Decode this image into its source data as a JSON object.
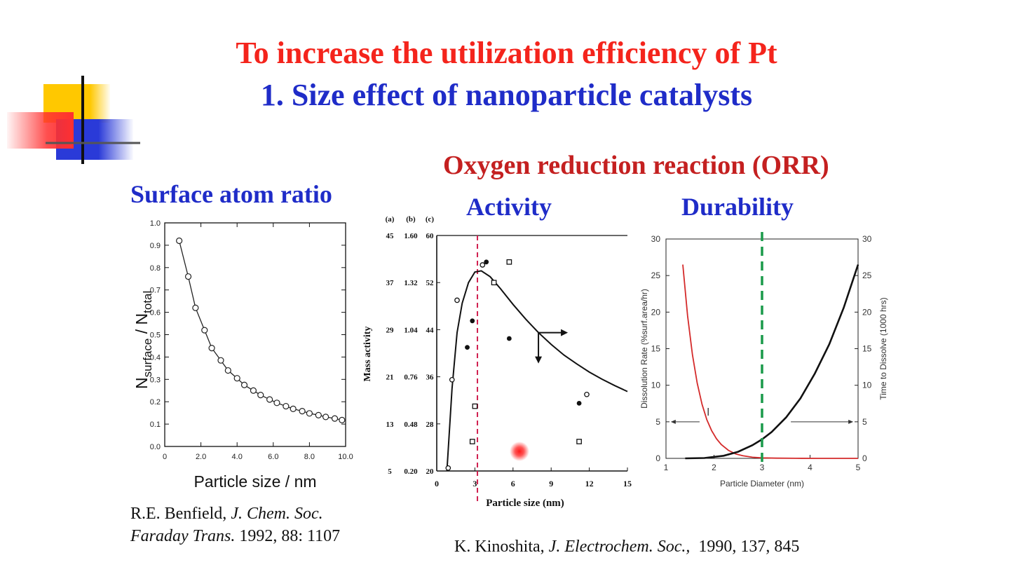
{
  "header": {
    "title_line1": "To increase the utilization efficiency of Pt",
    "title_line2": "1. Size effect of nanoparticle catalysts",
    "orr_title": "Oxygen reduction reaction (ORR)",
    "left_subtitle": "Surface atom ratio",
    "activity_subtitle": "Activity",
    "durability_subtitle": "Durability"
  },
  "colors": {
    "title_red": "#f4241c",
    "title_blue": "#1f2cc8",
    "orr_red": "#c42020",
    "dissolution_red": "#d42a2a",
    "durability_marker_green": "#1a9a4a",
    "activity_marker_red": "#d02050"
  },
  "citations": {
    "left_author": "R.E. Benfield, ",
    "left_journal": "J. Chem. Soc.",
    "left_journal2": "Faraday Trans.",
    "left_details": " 1992, 88: 1107",
    "middle_author": "K. Kinoshita, ",
    "middle_journal": "J. Electrochem. Soc.,",
    "middle_details": "  1990, 137, 845"
  },
  "chart_data": [
    {
      "type": "scatter",
      "name": "surface-atom-ratio",
      "xlabel": "Particle size / nm",
      "ylabel_main": "N",
      "ylabel_sub1": "surface",
      "ylabel_mid": " / N",
      "ylabel_sub2": "total",
      "xlim": [
        0,
        10
      ],
      "ylim": [
        0,
        1.0
      ],
      "x_ticks": [
        "0",
        "2.0",
        "4.0",
        "6.0",
        "8.0",
        "10.0"
      ],
      "y_ticks": [
        "0.0",
        "0.1",
        "0.2",
        "0.3",
        "0.4",
        "0.5",
        "0.6",
        "0.7",
        "0.8",
        "0.9",
        "1.0"
      ],
      "x": [
        0.8,
        1.3,
        1.7,
        2.2,
        2.6,
        3.1,
        3.5,
        4.0,
        4.4,
        4.9,
        5.3,
        5.8,
        6.2,
        6.7,
        7.1,
        7.6,
        8.0,
        8.5,
        8.9,
        9.4,
        9.8
      ],
      "y": [
        0.92,
        0.76,
        0.62,
        0.52,
        0.44,
        0.385,
        0.34,
        0.305,
        0.275,
        0.25,
        0.23,
        0.21,
        0.195,
        0.18,
        0.168,
        0.158,
        0.148,
        0.14,
        0.132,
        0.125,
        0.118
      ]
    },
    {
      "type": "scatter",
      "name": "mass-activity",
      "xlabel": "Particle size (nm)",
      "ylabel": "Mass activity",
      "col_headers": [
        "(a)",
        "(b)",
        "(c)"
      ],
      "col_a_ticks": [
        "45",
        "37",
        "29",
        "21",
        "13",
        "5"
      ],
      "col_b_ticks": [
        "1.60",
        "1.32",
        "1.04",
        "0.76",
        "0.48",
        "0.20"
      ],
      "col_c_ticks": [
        "60",
        "52",
        "44",
        "36",
        "28",
        "20"
      ],
      "x_ticks": [
        "0",
        "3",
        "6",
        "9",
        "12",
        "15"
      ],
      "xlim": [
        0,
        15
      ],
      "ylim": [
        20,
        60
      ],
      "marker_x": 3.2,
      "curve_x": [
        0.8,
        1.2,
        1.6,
        2.0,
        2.5,
        3.0,
        3.5,
        4.2,
        5.0,
        6.0,
        7.0,
        8.0,
        9.0,
        10.0,
        11.0,
        12.0,
        13.0,
        14.0,
        15.0
      ],
      "curve_y": [
        20.0,
        34.0,
        43.5,
        48.5,
        52.0,
        53.8,
        54.0,
        53.0,
        51.0,
        48.3,
        45.8,
        43.5,
        41.5,
        39.7,
        38.2,
        36.8,
        35.6,
        34.5,
        33.5
      ],
      "open_circles": {
        "x": [
          0.9,
          1.2,
          1.6,
          3.6,
          11.8
        ],
        "y": [
          20.5,
          35.5,
          49.0,
          55.0,
          33.0
        ]
      },
      "filled_circles": {
        "x": [
          2.4,
          2.8,
          3.9,
          5.7,
          11.2
        ],
        "y": [
          41.0,
          45.5,
          55.5,
          42.5,
          31.5
        ]
      },
      "open_squares": {
        "x": [
          2.8,
          3.0,
          4.5,
          5.7,
          11.2
        ],
        "y": [
          25.0,
          31.0,
          52.0,
          55.5,
          25.0
        ]
      }
    },
    {
      "type": "line",
      "name": "dissolution",
      "xlabel": "Particle Diameter (nm)",
      "ylabel_left": "Dissolution Rate (%surf.area/hr)",
      "ylabel_right": "Time to Dissolve (1000 hrs)",
      "xlim": [
        1,
        5
      ],
      "ylim": [
        0,
        30
      ],
      "x_ticks": [
        "1",
        "2",
        "3",
        "4",
        "5"
      ],
      "y_ticks": [
        "0",
        "5",
        "10",
        "15",
        "20",
        "25",
        "30"
      ],
      "marker_x": 3.0,
      "series": [
        {
          "color": "#d42a2a",
          "x": [
            1.35,
            1.45,
            1.55,
            1.65,
            1.75,
            1.85,
            1.95,
            2.05,
            2.15,
            2.3,
            2.45,
            2.6,
            2.8,
            3.0,
            3.3,
            3.7,
            4.2,
            5.0
          ],
          "y": [
            26.5,
            19.5,
            14.2,
            10.3,
            7.4,
            5.3,
            3.8,
            2.7,
            1.9,
            1.1,
            0.6,
            0.35,
            0.15,
            0.07,
            0.03,
            0.01,
            0.0,
            0.0
          ]
        },
        {
          "color": "#111111",
          "x": [
            1.4,
            1.8,
            2.2,
            2.5,
            2.8,
            3.0,
            3.2,
            3.5,
            3.8,
            4.1,
            4.4,
            4.7,
            5.0
          ],
          "y": [
            0.0,
            0.05,
            0.35,
            0.9,
            1.8,
            2.6,
            3.6,
            5.6,
            8.2,
            11.6,
            15.6,
            20.6,
            26.5
          ]
        }
      ]
    }
  ]
}
